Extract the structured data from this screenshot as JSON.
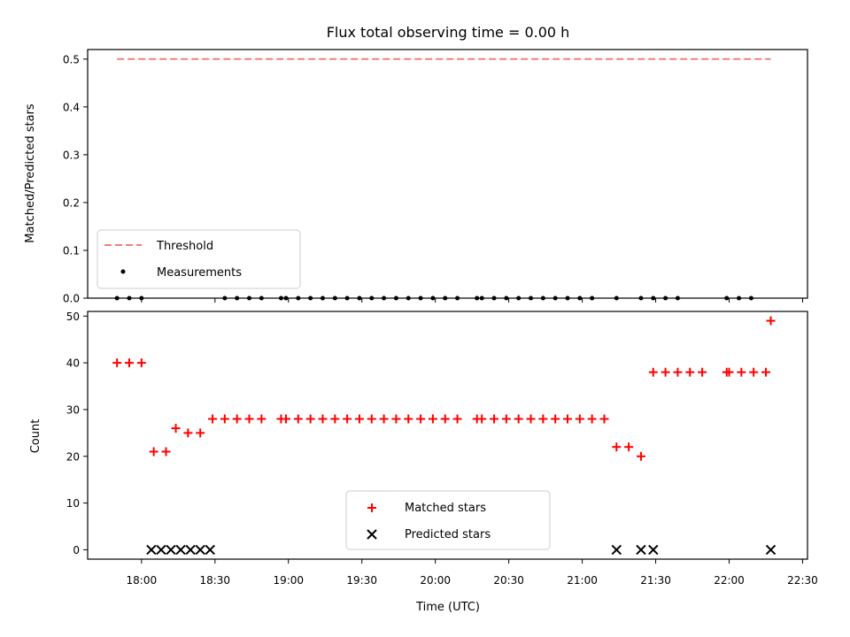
{
  "title": "Flux total observing time = 0.00 h",
  "colors": {
    "threshold": "#f08080",
    "measurement": "#000000",
    "matched": "#ff0000",
    "predicted": "#000000"
  },
  "chart_data": [
    {
      "type": "line",
      "panel": "top",
      "ylabel": "Matched/Predicted stars",
      "ylim": [
        0,
        0.52
      ],
      "yticks": [
        "0.0",
        "0.1",
        "0.2",
        "0.3",
        "0.4",
        "0.5"
      ],
      "legend_placement": "lower-left",
      "legend": [
        "Threshold",
        "Measurements"
      ],
      "series": [
        {
          "name": "Threshold",
          "style": "dashed-line",
          "x": [
            "17:50",
            "22:17"
          ],
          "y": [
            0.5,
            0.5
          ]
        },
        {
          "name": "Measurements",
          "style": "dot",
          "x": [
            "17:50",
            "17:55",
            "18:00",
            "18:34",
            "18:39",
            "18:44",
            "18:49",
            "18:57",
            "18:59",
            "19:04",
            "19:09",
            "19:14",
            "19:19",
            "19:24",
            "19:29",
            "19:34",
            "19:39",
            "19:44",
            "19:49",
            "19:54",
            "19:59",
            "20:04",
            "20:09",
            "20:17",
            "20:19",
            "20:24",
            "20:29",
            "20:34",
            "20:39",
            "20:44",
            "20:49",
            "20:54",
            "20:59",
            "21:04",
            "21:14",
            "21:24",
            "21:29",
            "21:34",
            "21:39",
            "21:59",
            "22:04",
            "22:09"
          ],
          "y": [
            0,
            0,
            0,
            0,
            0,
            0,
            0,
            0,
            0,
            0,
            0,
            0,
            0,
            0,
            0,
            0,
            0,
            0,
            0,
            0,
            0,
            0,
            0,
            0,
            0,
            0,
            0,
            0,
            0,
            0,
            0,
            0,
            0,
            0,
            0,
            0,
            0,
            0,
            0,
            0,
            0,
            0
          ]
        }
      ]
    },
    {
      "type": "scatter",
      "panel": "bottom",
      "xlabel": "Time (UTC)",
      "ylabel": "Count",
      "ylim": [
        -2,
        51
      ],
      "yticks": [
        "0",
        "10",
        "20",
        "30",
        "40",
        "50"
      ],
      "xlim": [
        "17:38",
        "22:32"
      ],
      "xticks": [
        "18:00",
        "18:30",
        "19:00",
        "19:30",
        "20:00",
        "20:30",
        "21:00",
        "21:30",
        "22:00",
        "22:30"
      ],
      "legend_placement": "lower-center",
      "legend": [
        "Matched stars",
        "Predicted stars"
      ],
      "series": [
        {
          "name": "Matched stars",
          "marker": "plus",
          "points": [
            [
              "17:50",
              40
            ],
            [
              "17:55",
              40
            ],
            [
              "18:00",
              40
            ],
            [
              "18:05",
              21
            ],
            [
              "18:10",
              21
            ],
            [
              "18:14",
              26
            ],
            [
              "18:19",
              25
            ],
            [
              "18:24",
              25
            ],
            [
              "18:29",
              28
            ],
            [
              "18:34",
              28
            ],
            [
              "18:39",
              28
            ],
            [
              "18:44",
              28
            ],
            [
              "18:49",
              28
            ],
            [
              "18:57",
              28
            ],
            [
              "18:59",
              28
            ],
            [
              "19:04",
              28
            ],
            [
              "19:09",
              28
            ],
            [
              "19:14",
              28
            ],
            [
              "19:19",
              28
            ],
            [
              "19:24",
              28
            ],
            [
              "19:29",
              28
            ],
            [
              "19:34",
              28
            ],
            [
              "19:39",
              28
            ],
            [
              "19:44",
              28
            ],
            [
              "19:49",
              28
            ],
            [
              "19:54",
              28
            ],
            [
              "19:59",
              28
            ],
            [
              "20:04",
              28
            ],
            [
              "20:09",
              28
            ],
            [
              "20:17",
              28
            ],
            [
              "20:19",
              28
            ],
            [
              "20:24",
              28
            ],
            [
              "20:29",
              28
            ],
            [
              "20:34",
              28
            ],
            [
              "20:39",
              28
            ],
            [
              "20:44",
              28
            ],
            [
              "20:49",
              28
            ],
            [
              "20:54",
              28
            ],
            [
              "20:59",
              28
            ],
            [
              "21:04",
              28
            ],
            [
              "21:09",
              28
            ],
            [
              "21:14",
              22
            ],
            [
              "21:19",
              22
            ],
            [
              "21:24",
              20
            ],
            [
              "21:29",
              38
            ],
            [
              "21:34",
              38
            ],
            [
              "21:39",
              38
            ],
            [
              "21:44",
              38
            ],
            [
              "21:49",
              38
            ],
            [
              "21:59",
              38
            ],
            [
              "22:00",
              38
            ],
            [
              "22:05",
              38
            ],
            [
              "22:10",
              38
            ],
            [
              "22:15",
              38
            ],
            [
              "22:17",
              49
            ]
          ]
        },
        {
          "name": "Predicted stars",
          "marker": "x",
          "points": [
            [
              "18:04",
              0
            ],
            [
              "18:08",
              0
            ],
            [
              "18:12",
              0
            ],
            [
              "18:16",
              0
            ],
            [
              "18:20",
              0
            ],
            [
              "18:24",
              0
            ],
            [
              "18:28",
              0
            ],
            [
              "21:14",
              0
            ],
            [
              "21:24",
              0
            ],
            [
              "21:29",
              0
            ],
            [
              "22:17",
              0
            ]
          ]
        }
      ]
    }
  ]
}
